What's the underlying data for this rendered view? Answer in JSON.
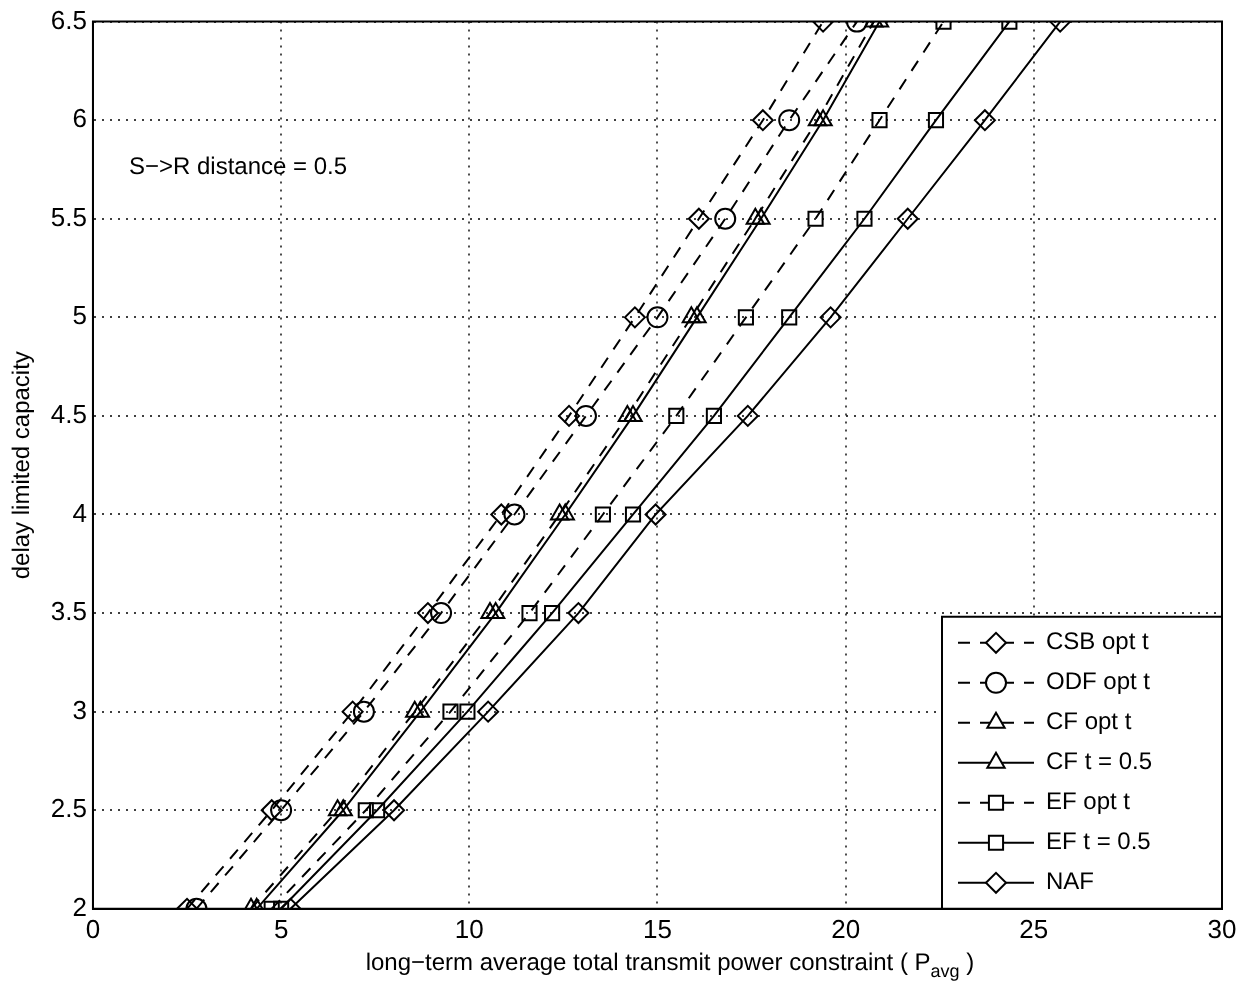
{
  "chart_data": {
    "type": "line",
    "xlabel": "long−term average total transmit power constraint ( P$_{avg}$ )",
    "ylabel": "delay limited capacity",
    "annotations": [
      "S−>R distance = 0.5"
    ],
    "xlim": [
      0,
      30
    ],
    "xticks": [
      0,
      5,
      10,
      15,
      20,
      25,
      30
    ],
    "ylim": [
      2,
      6.5
    ],
    "yticks": [
      2,
      2.5,
      3,
      3.5,
      4,
      4.5,
      5,
      5.5,
      6,
      6.5
    ],
    "grid": true,
    "legend": "bottom right",
    "series": [
      {
        "name": "CSB opt t",
        "color": "#000000",
        "marker": "diamond",
        "line_style": "dashed",
        "x": [
          2.5,
          4.75,
          6.9,
          8.9,
          10.85,
          12.65,
          14.4,
          16.1,
          17.8,
          19.4
        ],
        "values": [
          2,
          2.5,
          3,
          3.5,
          4,
          4.5,
          5,
          5.5,
          6,
          6.5
        ]
      },
      {
        "name": "ODF opt t",
        "color": "#000000",
        "marker": "circle",
        "line_style": "dashed",
        "x": [
          2.75,
          5.0,
          7.2,
          9.25,
          11.2,
          13.1,
          15.0,
          16.8,
          18.5,
          20.3
        ],
        "values": [
          2,
          2.5,
          3,
          3.5,
          4,
          4.5,
          5,
          5.5,
          6,
          6.5
        ]
      },
      {
        "name": "CF opt t",
        "color": "#000000",
        "marker": "triangle",
        "line_style": "dashed",
        "x": [
          4.2,
          6.5,
          8.55,
          10.55,
          12.4,
          14.2,
          15.9,
          17.6,
          19.25,
          20.75
        ],
        "values": [
          2,
          2.5,
          3,
          3.5,
          4,
          4.5,
          5,
          5.5,
          6,
          6.5
        ]
      },
      {
        "name": "CF t = 0.5",
        "color": "#000000",
        "marker": "triangle",
        "line_style": "solid",
        "x": [
          4.35,
          6.65,
          8.7,
          10.7,
          12.55,
          14.35,
          16.05,
          17.75,
          19.4,
          20.9
        ],
        "values": [
          2,
          2.5,
          3,
          3.5,
          4,
          4.5,
          5,
          5.5,
          6,
          6.5
        ]
      },
      {
        "name": "EF opt t",
        "color": "#000000",
        "marker": "square",
        "line_style": "dashed",
        "x": [
          4.75,
          7.25,
          9.5,
          11.6,
          13.55,
          15.5,
          17.35,
          19.2,
          20.9,
          22.6
        ],
        "values": [
          2,
          2.5,
          3,
          3.5,
          4,
          4.5,
          5,
          5.5,
          6,
          6.5
        ]
      },
      {
        "name": "EF t = 0.5",
        "color": "#000000",
        "marker": "square",
        "line_style": "solid",
        "x": [
          5.0,
          7.55,
          9.95,
          12.2,
          14.35,
          16.5,
          18.5,
          20.5,
          22.4,
          24.35
        ],
        "values": [
          2,
          2.5,
          3,
          3.5,
          4,
          4.5,
          5,
          5.5,
          6,
          6.5
        ]
      },
      {
        "name": "NAF",
        "color": "#000000",
        "marker": "diamond",
        "line_style": "solid",
        "x": [
          5.25,
          8.0,
          10.5,
          12.9,
          14.95,
          17.4,
          19.6,
          21.65,
          23.7,
          25.7
        ],
        "values": [
          2,
          2.5,
          3,
          3.5,
          4,
          4.5,
          5,
          5.5,
          6,
          6.5
        ]
      }
    ]
  }
}
